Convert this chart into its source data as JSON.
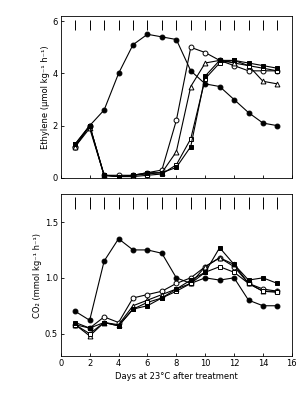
{
  "ethylene": {
    "filled_circle": {
      "x": [
        1,
        2,
        3,
        4,
        5,
        6,
        7,
        8,
        9,
        10,
        11,
        12,
        13,
        14,
        15
      ],
      "y": [
        1.2,
        2.0,
        2.6,
        4.0,
        5.1,
        5.5,
        5.4,
        5.3,
        4.1,
        3.6,
        3.5,
        3.0,
        2.5,
        2.1,
        2.0
      ]
    },
    "open_circle": {
      "x": [
        1,
        2,
        3,
        4,
        5,
        6,
        7,
        8,
        9,
        10,
        11,
        12,
        13,
        14,
        15
      ],
      "y": [
        1.2,
        2.0,
        0.1,
        0.1,
        0.1,
        0.2,
        0.3,
        2.2,
        5.0,
        4.8,
        4.5,
        4.3,
        4.1,
        4.1,
        4.1
      ]
    },
    "open_triangle": {
      "x": [
        1,
        2,
        3,
        4,
        5,
        6,
        7,
        8,
        9,
        10,
        11,
        12,
        13,
        14,
        15
      ],
      "y": [
        1.2,
        1.9,
        0.1,
        0.05,
        0.1,
        0.15,
        0.2,
        1.0,
        3.5,
        4.4,
        4.5,
        4.4,
        4.3,
        3.7,
        3.6
      ]
    },
    "open_square": {
      "x": [
        1,
        2,
        3,
        4,
        5,
        6,
        7,
        8,
        9,
        10,
        11,
        12,
        13,
        14,
        15
      ],
      "y": [
        1.3,
        2.0,
        0.1,
        0.05,
        0.05,
        0.1,
        0.15,
        0.5,
        1.5,
        3.8,
        4.4,
        4.5,
        4.3,
        4.2,
        4.1
      ]
    },
    "filled_square": {
      "x": [
        1,
        2,
        3,
        4,
        5,
        6,
        7,
        8,
        9,
        10,
        11,
        12,
        13,
        14,
        15
      ],
      "y": [
        1.3,
        2.0,
        0.1,
        0.05,
        0.1,
        0.2,
        0.2,
        0.4,
        1.2,
        3.9,
        4.5,
        4.5,
        4.4,
        4.3,
        4.2
      ]
    },
    "ylabel": "Ethylene (μmol kg⁻¹ h⁻¹)",
    "ylim": [
      0,
      6.2
    ],
    "yticks": [
      0,
      2,
      4,
      6
    ]
  },
  "co2": {
    "filled_circle": {
      "x": [
        1,
        2,
        3,
        4,
        5,
        6,
        7,
        8,
        9,
        10,
        11,
        12,
        13,
        14,
        15
      ],
      "y": [
        0.7,
        0.62,
        1.15,
        1.35,
        1.25,
        1.25,
        1.22,
        1.0,
        0.95,
        1.0,
        0.98,
        1.0,
        0.8,
        0.75,
        0.75
      ]
    },
    "open_circle": {
      "x": [
        1,
        2,
        3,
        4,
        5,
        6,
        7,
        8,
        9,
        10,
        11,
        12,
        13,
        14,
        15
      ],
      "y": [
        0.58,
        0.55,
        0.65,
        0.6,
        0.82,
        0.85,
        0.88,
        0.95,
        1.0,
        1.1,
        1.18,
        1.1,
        0.95,
        0.9,
        0.88
      ]
    },
    "open_triangle": {
      "x": [
        1,
        2,
        3,
        4,
        5,
        6,
        7,
        8,
        9,
        10,
        11,
        12,
        13,
        14,
        15
      ],
      "y": [
        0.58,
        0.48,
        0.6,
        0.58,
        0.75,
        0.8,
        0.85,
        0.9,
        0.95,
        1.1,
        1.18,
        1.12,
        0.95,
        0.88,
        0.88
      ]
    },
    "open_square": {
      "x": [
        1,
        2,
        3,
        4,
        5,
        6,
        7,
        8,
        9,
        10,
        11,
        12,
        13,
        14,
        15
      ],
      "y": [
        0.58,
        0.5,
        0.6,
        0.57,
        0.72,
        0.78,
        0.82,
        0.88,
        0.95,
        1.05,
        1.1,
        1.05,
        0.95,
        0.88,
        0.87
      ]
    },
    "filled_square": {
      "x": [
        1,
        2,
        3,
        4,
        5,
        6,
        7,
        8,
        9,
        10,
        11,
        12,
        13,
        14,
        15
      ],
      "y": [
        0.6,
        0.55,
        0.6,
        0.57,
        0.72,
        0.75,
        0.82,
        0.9,
        0.98,
        1.05,
        1.27,
        1.12,
        0.98,
        1.0,
        0.95
      ]
    },
    "ylabel": "CO₂ (mmol kg⁻¹ h⁻¹)",
    "ylim": [
      0.3,
      1.75
    ],
    "yticks": [
      0.5,
      1.0,
      1.5
    ]
  },
  "xlabel": "Days at 23°C after treatment",
  "xlim": [
    0,
    16
  ],
  "xticks": [
    0,
    2,
    4,
    6,
    8,
    10,
    12,
    14,
    16
  ],
  "lsd_eth_x": [
    1,
    2,
    3,
    4,
    5,
    6,
    7,
    8,
    9,
    10,
    11,
    12,
    13,
    14,
    15
  ],
  "lsd_co2_x": [
    1,
    2,
    3,
    4,
    5,
    6,
    7,
    8,
    9,
    10,
    11,
    12,
    13,
    14,
    15
  ],
  "marker_size": 3.5,
  "line_width": 0.8,
  "font_size": 6,
  "color": "black"
}
